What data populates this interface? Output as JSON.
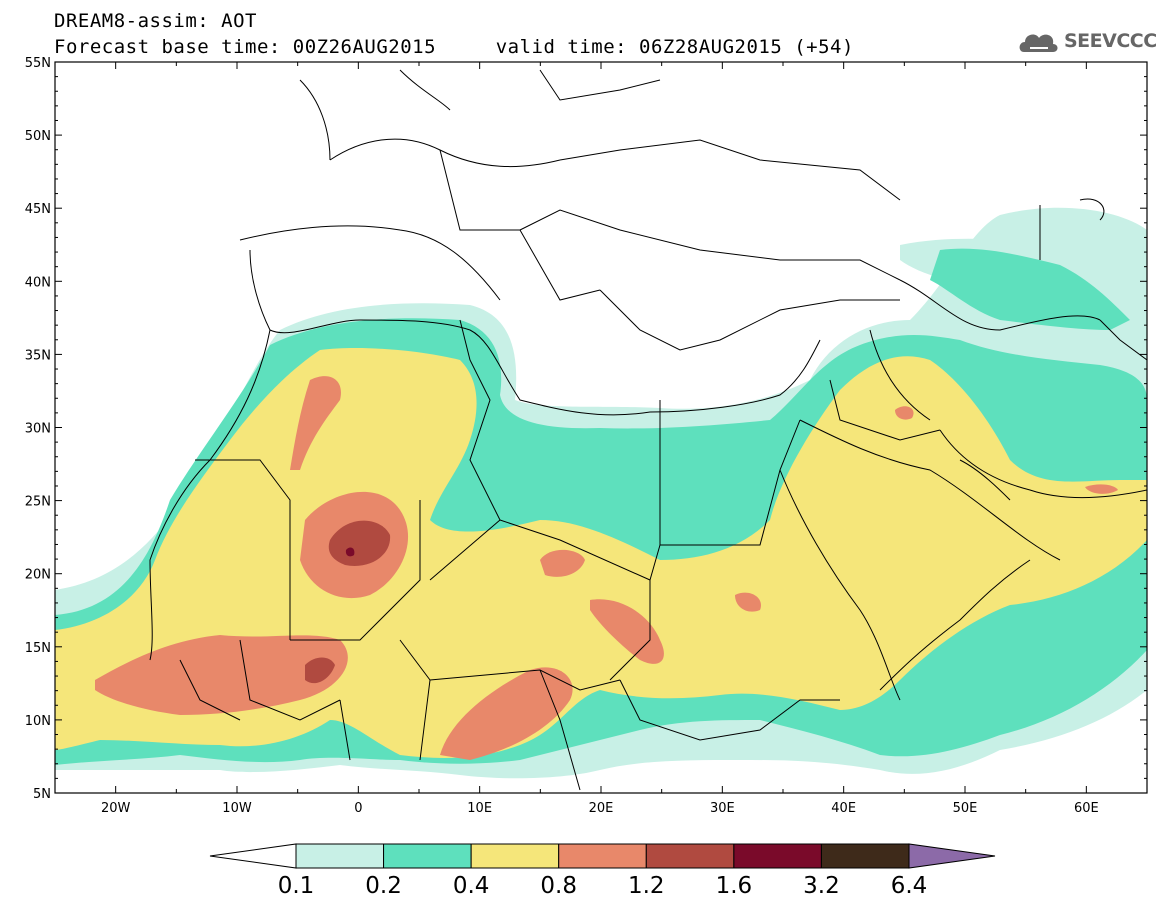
{
  "header": {
    "title_line1": "DREAM8-assim: AOT",
    "title_line2": "Forecast base time: 00Z26AUG2015     valid time: 06Z28AUG2015 (+54)"
  },
  "logo": {
    "text": "SEEVCCC",
    "icon": "cloud-icon"
  },
  "axes": {
    "x_ticks": [
      "20W",
      "10W",
      "0",
      "10E",
      "20E",
      "30E",
      "40E",
      "50E",
      "60E"
    ],
    "y_ticks": [
      "55N",
      "50N",
      "45N",
      "40N",
      "35N",
      "30N",
      "25N",
      "20N",
      "15N",
      "10N",
      "5N"
    ],
    "lon_range": [
      -25,
      65
    ],
    "lat_range": [
      5,
      55
    ]
  },
  "colorbar": {
    "labels": [
      "0.1",
      "0.2",
      "0.4",
      "0.8",
      "1.2",
      "1.6",
      "3.2",
      "6.4"
    ],
    "colors": [
      "#ffffff",
      "#c8f0e6",
      "#5ee0bd",
      "#f5e67a",
      "#e8886a",
      "#b04a40",
      "#7a0a2a",
      "#3e2a1a",
      "#8c6aa8"
    ]
  },
  "map": {
    "land_color": "#ffffff",
    "border_color": "#000000",
    "aot_levels_shown": [
      "0.1-0.2",
      "0.2-0.4",
      "0.4-0.8",
      "0.8-1.2",
      "1.2-1.6",
      "1.6-3.2"
    ]
  }
}
